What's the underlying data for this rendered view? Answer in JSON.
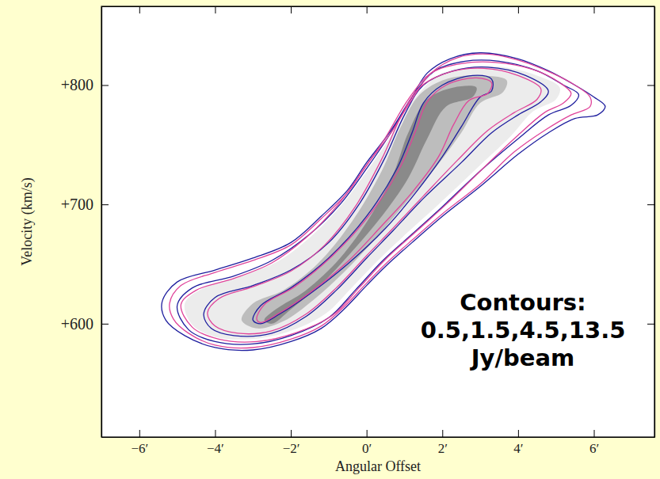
{
  "chart_data": {
    "type": "contour",
    "x_label": "Angular Offset",
    "y_label": "Velocity (km/s)",
    "annotation": [
      "Contours:",
      "0.5,1.5,4.5,13.5",
      "Jy/beam"
    ],
    "xlim": [
      -7,
      7.6
    ],
    "ylim": [
      505,
      866
    ],
    "xticks": [
      {
        "value": -6,
        "label": "−6′"
      },
      {
        "value": -4,
        "label": "−4′"
      },
      {
        "value": -2,
        "label": "−2′"
      },
      {
        "value": 0,
        "label": "0′"
      },
      {
        "value": 2,
        "label": "2′"
      },
      {
        "value": 4,
        "label": "4′"
      },
      {
        "value": 6,
        "label": "6′"
      }
    ],
    "yticks": [
      {
        "value": 600,
        "label": "+600"
      },
      {
        "value": 700,
        "label": "+700"
      },
      {
        "value": 800,
        "label": "+800"
      }
    ],
    "grid": false,
    "series": [
      {
        "type": "fill",
        "color": "#ececec",
        "x": [
          -4.8,
          -4.3,
          -3.3,
          -2.3,
          -1.4,
          -0.6,
          0.1,
          0.7,
          1.3,
          1.9,
          2.7,
          3.6,
          4.5,
          5.1,
          5.0,
          4.4,
          3.8,
          2.9,
          1.9,
          1.1,
          0.3,
          -0.4,
          -1.1,
          -2.1,
          -3.1,
          -4.0,
          -4.6
        ],
        "y": [
          617,
          630,
          640,
          653,
          675,
          702,
          732,
          760,
          790,
          808,
          815,
          815,
          808,
          798,
          788,
          778,
          757,
          730,
          700,
          677,
          653,
          630,
          608,
          593,
          587,
          589,
          599
        ]
      },
      {
        "type": "fill",
        "color": "#bdbdbd",
        "x": [
          -3.3,
          -3.0,
          -2.2,
          -1.3,
          -0.4,
          0.4,
          0.9,
          1.4,
          2.1,
          3.0,
          3.7,
          3.6,
          3.0,
          2.5,
          1.8,
          1.0,
          0.2,
          -0.6,
          -1.4,
          -2.2,
          -2.9
        ],
        "y": [
          603,
          617,
          628,
          650,
          685,
          728,
          765,
          792,
          805,
          808,
          804,
          794,
          785,
          760,
          730,
          700,
          670,
          643,
          620,
          602,
          596
        ]
      },
      {
        "type": "fill",
        "color": "#8a8a8a",
        "x": [
          -2.7,
          -2.4,
          -1.6,
          -0.7,
          0.1,
          0.7,
          1.1,
          1.6,
          2.3,
          2.9,
          2.8,
          2.1,
          1.6,
          1.1,
          0.4,
          -0.4,
          -1.2,
          -2.0,
          -2.5
        ],
        "y": [
          603,
          612,
          628,
          655,
          690,
          725,
          760,
          788,
          798,
          798,
          790,
          782,
          755,
          722,
          690,
          660,
          633,
          612,
          600
        ]
      },
      {
        "type": "contour",
        "color": "#1e1e9e",
        "x": [
          -5.4,
          -5.0,
          -4.0,
          -3.0,
          -2.0,
          -1.2,
          -0.5,
          0,
          0.6,
          1.2,
          1.6,
          2.2,
          3.0,
          4.0,
          4.8,
          5.5,
          6.0,
          6.3,
          6.1,
          5.5,
          4.8,
          4.0,
          3.0,
          2.0,
          1.2,
          0.5,
          0,
          -0.6,
          -1.2,
          -2.0,
          -3.0,
          -4.0,
          -4.8,
          -5.3
        ],
        "y": [
          618,
          635,
          645,
          655,
          668,
          690,
          712,
          735,
          760,
          790,
          810,
          822,
          827,
          822,
          812,
          800,
          790,
          782,
          775,
          772,
          760,
          742,
          715,
          690,
          668,
          648,
          632,
          612,
          596,
          585,
          578,
          580,
          590,
          603
        ]
      },
      {
        "type": "contour",
        "color": "#1e1e9e",
        "x": [
          -5.0,
          -4.6,
          -3.5,
          -2.5,
          -1.5,
          -0.7,
          0,
          0.6,
          1.2,
          1.8,
          2.6,
          3.5,
          4.5,
          5.2,
          5.6,
          5.4,
          4.8,
          4.0,
          3.0,
          2.0,
          1.2,
          0.4,
          -0.3,
          -1.0,
          -2.0,
          -3.0,
          -4.0,
          -4.7
        ],
        "y": [
          615,
          630,
          640,
          653,
          675,
          700,
          730,
          758,
          790,
          812,
          820,
          820,
          812,
          800,
          792,
          783,
          775,
          755,
          728,
          698,
          675,
          652,
          628,
          605,
          590,
          583,
          585,
          595
        ]
      },
      {
        "type": "contour",
        "color": "#1e1e9e",
        "x": [
          -4.3,
          -4.0,
          -3.0,
          -2.0,
          -1.0,
          -0.2,
          0.5,
          1.0,
          1.5,
          2.3,
          3.2,
          4.2,
          4.8,
          4.6,
          4.0,
          3.3,
          2.5,
          1.5,
          0.7,
          0,
          -0.8,
          -1.6,
          -2.5,
          -3.5,
          -4.1
        ],
        "y": [
          608,
          622,
          632,
          645,
          668,
          700,
          740,
          775,
          800,
          812,
          815,
          808,
          795,
          786,
          775,
          760,
          735,
          705,
          678,
          655,
          628,
          606,
          592,
          590,
          596
        ]
      },
      {
        "type": "contour",
        "color": "#1e1e9e",
        "x": [
          -3.0,
          -2.8,
          -2.0,
          -1.0,
          0,
          0.8,
          1.2,
          1.5,
          2.0,
          2.8,
          3.3,
          3.3,
          3.0,
          2.5,
          2.0,
          1.3,
          0.5,
          -0.5,
          -1.5,
          -2.3,
          -2.8
        ],
        "y": [
          603,
          615,
          630,
          655,
          690,
          730,
          760,
          785,
          800,
          808,
          805,
          795,
          790,
          765,
          740,
          710,
          680,
          650,
          625,
          608,
          600
        ]
      },
      {
        "type": "contour",
        "color": "#e0449a",
        "x": [
          -5.2,
          -4.9,
          -4.0,
          -3.0,
          -2.0,
          -1.2,
          -0.5,
          0,
          0.6,
          1.2,
          1.7,
          2.4,
          3.2,
          4.1,
          4.9,
          5.5,
          5.9,
          5.9,
          5.4,
          4.7,
          3.9,
          3.0,
          2.0,
          1.2,
          0.5,
          0,
          -0.6,
          -1.2,
          -2.0,
          -3.0,
          -4.0,
          -4.7,
          -5.1
        ],
        "y": [
          617,
          632,
          643,
          653,
          666,
          688,
          710,
          733,
          758,
          788,
          810,
          823,
          826,
          820,
          810,
          800,
          790,
          782,
          775,
          762,
          744,
          717,
          692,
          670,
          650,
          634,
          614,
          598,
          587,
          580,
          582,
          592,
          604
        ]
      },
      {
        "type": "contour",
        "color": "#e0449a",
        "x": [
          -4.9,
          -4.5,
          -3.5,
          -2.5,
          -1.6,
          -0.8,
          -0.1,
          0.5,
          1.1,
          1.7,
          2.5,
          3.4,
          4.4,
          5.1,
          5.4,
          5.2,
          4.7,
          4.0,
          3.1,
          2.1,
          1.3,
          0.5,
          -0.2,
          -0.9,
          -1.9,
          -2.9,
          -3.9,
          -4.6
        ],
        "y": [
          616,
          628,
          638,
          651,
          672,
          698,
          728,
          756,
          788,
          810,
          818,
          819,
          813,
          802,
          793,
          785,
          777,
          758,
          731,
          700,
          677,
          654,
          630,
          607,
          592,
          585,
          587,
          597
        ]
      },
      {
        "type": "contour",
        "color": "#e0449a",
        "x": [
          -4.2,
          -3.9,
          -3.0,
          -2.0,
          -1.1,
          -0.3,
          0.4,
          0.9,
          1.4,
          2.2,
          3.1,
          4.0,
          4.6,
          4.5,
          3.9,
          3.2,
          2.4,
          1.5,
          0.7,
          0,
          -0.8,
          -1.6,
          -2.5,
          -3.4,
          -4.0
        ],
        "y": [
          609,
          621,
          631,
          644,
          666,
          698,
          738,
          773,
          798,
          811,
          814,
          808,
          797,
          788,
          777,
          762,
          737,
          707,
          680,
          657,
          630,
          608,
          594,
          592,
          598
        ]
      },
      {
        "type": "contour",
        "color": "#e0449a",
        "x": [
          -2.9,
          -2.7,
          -1.9,
          -0.9,
          0.1,
          0.9,
          1.3,
          1.6,
          2.1,
          2.9,
          3.3,
          3.2,
          2.7,
          2.3,
          1.9,
          1.2,
          0.4,
          -0.5,
          -1.5,
          -2.3,
          -2.8
        ],
        "y": [
          604,
          616,
          631,
          657,
          692,
          732,
          762,
          786,
          800,
          806,
          802,
          793,
          787,
          767,
          740,
          710,
          682,
          652,
          626,
          609,
          601
        ]
      }
    ]
  }
}
